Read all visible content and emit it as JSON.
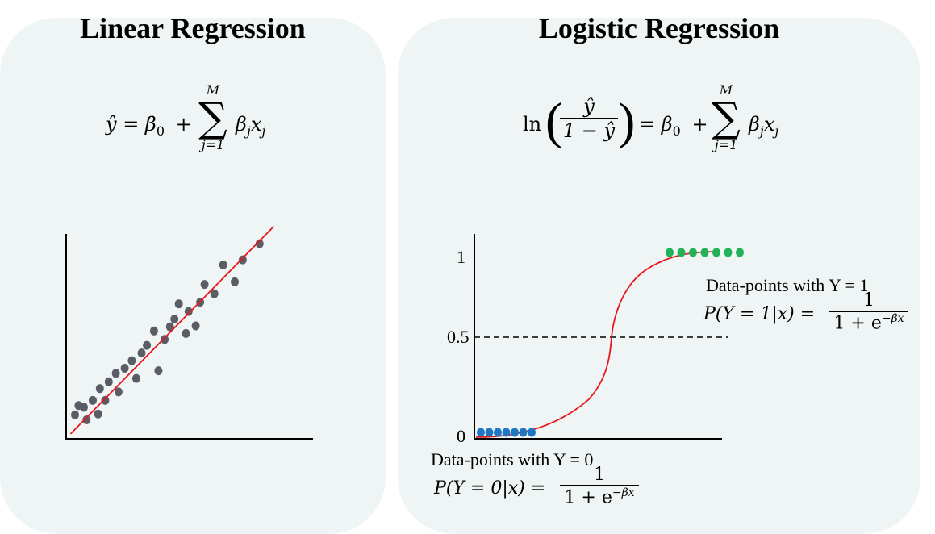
{
  "linear": {
    "title": "Linear Regression",
    "equation": {
      "lhs": "ŷ = β",
      "lhs_sub": "0",
      "plus": "+",
      "sum_top": "M",
      "sum_symbol": "∑",
      "sum_bottom": "j=1",
      "term": "β",
      "term_sub_1": "j",
      "term_x": "x",
      "term_sub_2": "j"
    },
    "scatter": {
      "line_color": "#e8171c",
      "point_color": "#5a5c66",
      "points": [
        [
          1.0,
          1.5
        ],
        [
          1.4,
          2.6
        ],
        [
          2.0,
          2.4
        ],
        [
          2.3,
          0.9
        ],
        [
          3.0,
          3.2
        ],
        [
          3.6,
          1.6
        ],
        [
          3.8,
          4.6
        ],
        [
          4.4,
          3.2
        ],
        [
          4.8,
          5.4
        ],
        [
          5.6,
          6.4
        ],
        [
          5.9,
          4.2
        ],
        [
          6.6,
          7.0
        ],
        [
          7.4,
          7.9
        ],
        [
          7.9,
          5.8
        ],
        [
          8.5,
          8.8
        ],
        [
          9.1,
          9.7
        ],
        [
          9.9,
          11.4
        ],
        [
          10.4,
          6.7
        ],
        [
          11.1,
          10.4
        ],
        [
          11.7,
          11.9
        ],
        [
          12.2,
          12.8
        ],
        [
          12.7,
          14.6
        ],
        [
          13.5,
          11.1
        ],
        [
          13.8,
          13.7
        ],
        [
          14.6,
          12.0
        ],
        [
          15.1,
          14.8
        ],
        [
          15.6,
          16.9
        ],
        [
          16.7,
          15.8
        ],
        [
          17.7,
          19.2
        ],
        [
          19.0,
          17.2
        ],
        [
          19.9,
          19.8
        ],
        [
          21.8,
          21.7
        ]
      ],
      "fit_line": [
        [
          0.5,
          0.2
        ],
        [
          22.5,
          23.0
        ]
      ]
    }
  },
  "logistic": {
    "title": "Logistic Regression",
    "equation": {
      "ln": "ln",
      "num": "ŷ",
      "den": "1 − ŷ",
      "eq": "= β",
      "eq_sub": "0",
      "plus": "+",
      "sum_top": "M",
      "sum_symbol": "∑",
      "sum_bottom": "j=1",
      "term": "β",
      "term_sub_1": "j",
      "term_x": "x",
      "term_sub_2": "j"
    },
    "chart": {
      "y_ticks": [
        "1",
        "0.5",
        "0"
      ],
      "curve_color": "#e8171c",
      "class0_color": "#1f77c4",
      "class1_color": "#22b35a",
      "class0_count": 7,
      "class1_count": 7
    },
    "label_y1": {
      "caption": "Data-points with Y = 1",
      "lhs": "P(Y = 1|x) =",
      "num": "1",
      "den": "1 + e",
      "exp": "−βx"
    },
    "label_y0": {
      "caption": "Data-points with Y = 0",
      "lhs": "P(Y = 0|x) =",
      "num": "1",
      "den": "1 + e",
      "exp": "−βx"
    }
  }
}
